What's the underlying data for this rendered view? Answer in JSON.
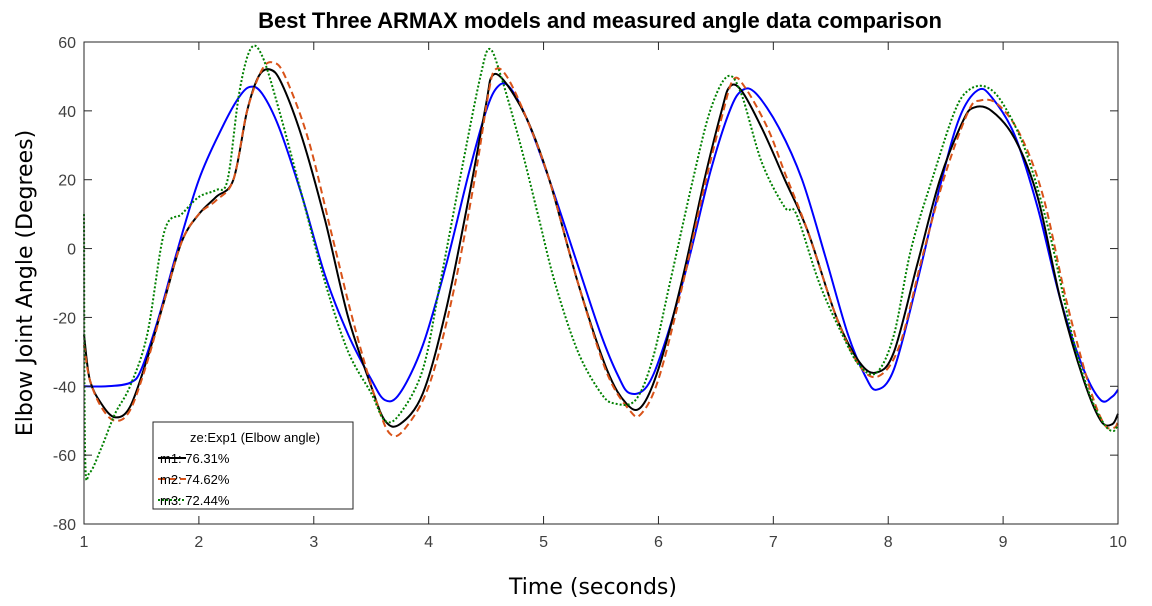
{
  "chart_data": {
    "type": "line",
    "title": "Best Three ARMAX models and measured angle data comparison",
    "xlabel": "Time (seconds)",
    "ylabel": "Elbow Joint Angle (Degrees)",
    "xlim": [
      1,
      10
    ],
    "ylim": [
      -80,
      60
    ],
    "xticks": [
      1,
      2,
      3,
      4,
      5,
      6,
      7,
      8,
      9,
      10
    ],
    "yticks": [
      -80,
      -60,
      -40,
      -20,
      0,
      20,
      40,
      60
    ],
    "grid": false,
    "legend_position": "bottom-left",
    "series": [
      {
        "name": "ze:Exp1 (Elbow angle)",
        "color": "#0000ff",
        "style": "solid",
        "points": [
          [
            1.0,
            -40
          ],
          [
            1.2,
            -40
          ],
          [
            1.4,
            -39
          ],
          [
            1.5,
            -35
          ],
          [
            1.65,
            -20
          ],
          [
            1.8,
            -2
          ],
          [
            2.0,
            20
          ],
          [
            2.2,
            35
          ],
          [
            2.35,
            44
          ],
          [
            2.45,
            47
          ],
          [
            2.55,
            45
          ],
          [
            2.7,
            35
          ],
          [
            2.9,
            15
          ],
          [
            3.1,
            -8
          ],
          [
            3.3,
            -25
          ],
          [
            3.5,
            -38
          ],
          [
            3.62,
            -44
          ],
          [
            3.75,
            -42
          ],
          [
            3.95,
            -28
          ],
          [
            4.15,
            -5
          ],
          [
            4.35,
            22
          ],
          [
            4.5,
            40
          ],
          [
            4.6,
            47
          ],
          [
            4.7,
            47
          ],
          [
            4.85,
            38
          ],
          [
            5.05,
            20
          ],
          [
            5.3,
            -5
          ],
          [
            5.5,
            -25
          ],
          [
            5.65,
            -37
          ],
          [
            5.75,
            -42
          ],
          [
            5.9,
            -40
          ],
          [
            6.05,
            -28
          ],
          [
            6.25,
            -5
          ],
          [
            6.45,
            22
          ],
          [
            6.62,
            40
          ],
          [
            6.73,
            46
          ],
          [
            6.85,
            45
          ],
          [
            7.05,
            35
          ],
          [
            7.25,
            20
          ],
          [
            7.45,
            -2
          ],
          [
            7.65,
            -25
          ],
          [
            7.8,
            -37
          ],
          [
            7.9,
            -41
          ],
          [
            8.05,
            -35
          ],
          [
            8.25,
            -10
          ],
          [
            8.45,
            18
          ],
          [
            8.62,
            38
          ],
          [
            8.78,
            46
          ],
          [
            8.9,
            44
          ],
          [
            9.1,
            33
          ],
          [
            9.3,
            12
          ],
          [
            9.5,
            -15
          ],
          [
            9.7,
            -35
          ],
          [
            9.85,
            -44
          ],
          [
            9.95,
            -43
          ],
          [
            10.0,
            -41
          ]
        ]
      },
      {
        "name": "m1: 76.31%",
        "color": "#000000",
        "style": "solid",
        "points": [
          [
            1.0,
            -25
          ],
          [
            1.05,
            -38
          ],
          [
            1.15,
            -45
          ],
          [
            1.27,
            -49
          ],
          [
            1.4,
            -46
          ],
          [
            1.55,
            -32
          ],
          [
            1.7,
            -15
          ],
          [
            1.85,
            2
          ],
          [
            2.0,
            10
          ],
          [
            2.15,
            15
          ],
          [
            2.3,
            20
          ],
          [
            2.42,
            40
          ],
          [
            2.52,
            50
          ],
          [
            2.62,
            52
          ],
          [
            2.72,
            48
          ],
          [
            2.9,
            32
          ],
          [
            3.1,
            8
          ],
          [
            3.3,
            -20
          ],
          [
            3.5,
            -40
          ],
          [
            3.62,
            -50
          ],
          [
            3.75,
            -51
          ],
          [
            3.95,
            -42
          ],
          [
            4.15,
            -18
          ],
          [
            4.35,
            15
          ],
          [
            4.5,
            42
          ],
          [
            4.55,
            50
          ],
          [
            4.65,
            49
          ],
          [
            4.85,
            38
          ],
          [
            5.05,
            20
          ],
          [
            5.3,
            -10
          ],
          [
            5.55,
            -35
          ],
          [
            5.72,
            -45
          ],
          [
            5.85,
            -46
          ],
          [
            6.0,
            -35
          ],
          [
            6.2,
            -10
          ],
          [
            6.4,
            20
          ],
          [
            6.55,
            40
          ],
          [
            6.62,
            47
          ],
          [
            6.72,
            46
          ],
          [
            6.9,
            35
          ],
          [
            7.1,
            20
          ],
          [
            7.3,
            5
          ],
          [
            7.55,
            -20
          ],
          [
            7.75,
            -33
          ],
          [
            7.9,
            -36
          ],
          [
            8.05,
            -30
          ],
          [
            8.25,
            -5
          ],
          [
            8.45,
            20
          ],
          [
            8.65,
            37
          ],
          [
            8.75,
            41
          ],
          [
            8.9,
            40
          ],
          [
            9.1,
            32
          ],
          [
            9.3,
            15
          ],
          [
            9.5,
            -15
          ],
          [
            9.7,
            -38
          ],
          [
            9.85,
            -50
          ],
          [
            9.95,
            -51
          ],
          [
            10.0,
            -48
          ]
        ]
      },
      {
        "name": "m2: 74.62%",
        "color": "#d95319",
        "style": "dashed",
        "points": [
          [
            1.0,
            -28
          ],
          [
            1.05,
            -38
          ],
          [
            1.15,
            -46
          ],
          [
            1.27,
            -50
          ],
          [
            1.4,
            -47
          ],
          [
            1.55,
            -33
          ],
          [
            1.7,
            -15
          ],
          [
            1.85,
            2
          ],
          [
            2.0,
            10
          ],
          [
            2.15,
            14
          ],
          [
            2.3,
            20
          ],
          [
            2.42,
            40
          ],
          [
            2.55,
            52
          ],
          [
            2.65,
            54
          ],
          [
            2.75,
            50
          ],
          [
            2.95,
            32
          ],
          [
            3.15,
            5
          ],
          [
            3.35,
            -22
          ],
          [
            3.55,
            -45
          ],
          [
            3.67,
            -54
          ],
          [
            3.8,
            -52
          ],
          [
            4.0,
            -40
          ],
          [
            4.2,
            -15
          ],
          [
            4.4,
            20
          ],
          [
            4.52,
            45
          ],
          [
            4.58,
            52
          ],
          [
            4.68,
            50
          ],
          [
            4.85,
            38
          ],
          [
            5.05,
            20
          ],
          [
            5.3,
            -10
          ],
          [
            5.55,
            -36
          ],
          [
            5.75,
            -47
          ],
          [
            5.85,
            -48
          ],
          [
            6.0,
            -38
          ],
          [
            6.2,
            -12
          ],
          [
            6.4,
            18
          ],
          [
            6.55,
            38
          ],
          [
            6.65,
            49
          ],
          [
            6.75,
            47
          ],
          [
            6.95,
            35
          ],
          [
            7.1,
            22
          ],
          [
            7.3,
            5
          ],
          [
            7.55,
            -20
          ],
          [
            7.75,
            -34
          ],
          [
            7.92,
            -37
          ],
          [
            8.1,
            -28
          ],
          [
            8.3,
            -2
          ],
          [
            8.5,
            22
          ],
          [
            8.7,
            40
          ],
          [
            8.8,
            43
          ],
          [
            8.95,
            42
          ],
          [
            9.15,
            33
          ],
          [
            9.35,
            15
          ],
          [
            9.55,
            -15
          ],
          [
            9.75,
            -40
          ],
          [
            9.88,
            -51
          ],
          [
            9.97,
            -52
          ],
          [
            10.0,
            -50
          ]
        ]
      },
      {
        "name": "m3: 72.44%",
        "color": "#008000",
        "style": "dotted",
        "points": [
          [
            1.0,
            10
          ],
          [
            1.01,
            -60
          ],
          [
            1.05,
            -65
          ],
          [
            1.15,
            -58
          ],
          [
            1.27,
            -48
          ],
          [
            1.4,
            -40
          ],
          [
            1.55,
            -25
          ],
          [
            1.7,
            5
          ],
          [
            1.85,
            10
          ],
          [
            2.0,
            15
          ],
          [
            2.15,
            17
          ],
          [
            2.25,
            20
          ],
          [
            2.35,
            45
          ],
          [
            2.45,
            58
          ],
          [
            2.55,
            56
          ],
          [
            2.7,
            40
          ],
          [
            2.9,
            15
          ],
          [
            3.1,
            -10
          ],
          [
            3.3,
            -30
          ],
          [
            3.5,
            -42
          ],
          [
            3.62,
            -50
          ],
          [
            3.75,
            -48
          ],
          [
            3.95,
            -35
          ],
          [
            4.1,
            -10
          ],
          [
            4.3,
            25
          ],
          [
            4.45,
            50
          ],
          [
            4.53,
            58
          ],
          [
            4.63,
            50
          ],
          [
            4.8,
            30
          ],
          [
            4.95,
            10
          ],
          [
            5.1,
            -10
          ],
          [
            5.3,
            -30
          ],
          [
            5.5,
            -42
          ],
          [
            5.62,
            -45
          ],
          [
            5.8,
            -44
          ],
          [
            5.95,
            -32
          ],
          [
            6.1,
            -10
          ],
          [
            6.3,
            20
          ],
          [
            6.45,
            40
          ],
          [
            6.6,
            50
          ],
          [
            6.72,
            45
          ],
          [
            6.9,
            25
          ],
          [
            7.1,
            12
          ],
          [
            7.2,
            10
          ],
          [
            7.4,
            -10
          ],
          [
            7.6,
            -25
          ],
          [
            7.75,
            -34
          ],
          [
            7.9,
            -36
          ],
          [
            8.05,
            -25
          ],
          [
            8.2,
            0
          ],
          [
            8.4,
            22
          ],
          [
            8.58,
            40
          ],
          [
            8.7,
            46
          ],
          [
            8.85,
            47
          ],
          [
            9.0,
            42
          ],
          [
            9.2,
            28
          ],
          [
            9.4,
            5
          ],
          [
            9.6,
            -25
          ],
          [
            9.75,
            -42
          ],
          [
            9.88,
            -51
          ],
          [
            9.96,
            -53
          ],
          [
            10.0,
            -51
          ]
        ]
      }
    ]
  }
}
